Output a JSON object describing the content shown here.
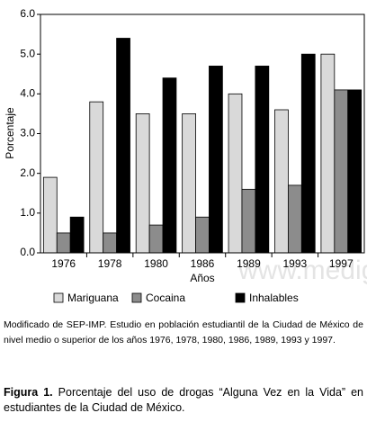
{
  "chart_data": {
    "type": "bar",
    "y_label": "Porcentaje",
    "x_label": "Años",
    "categories": [
      "1976",
      "1978",
      "1980",
      "1986",
      "1989",
      "1993",
      "1997"
    ],
    "series": [
      {
        "name": "Mariguana",
        "color": "#d9d9d9",
        "values": [
          1.9,
          3.8,
          3.5,
          3.5,
          4.0,
          3.6,
          5.0
        ]
      },
      {
        "name": "Cocaina",
        "color": "#8c8c8c",
        "values": [
          0.5,
          0.5,
          0.7,
          0.9,
          1.6,
          1.7,
          4.1
        ]
      },
      {
        "name": "Inhalables",
        "color": "#000000",
        "values": [
          0.9,
          5.4,
          4.4,
          4.7,
          4.7,
          5.0,
          4.1
        ]
      }
    ],
    "ylim": [
      0,
      6
    ],
    "yticks": [
      {
        "value": 0,
        "label": "0.0"
      },
      {
        "value": 1,
        "label": "1.0"
      },
      {
        "value": 2,
        "label": "2.0"
      },
      {
        "value": 3,
        "label": "3.0"
      },
      {
        "value": 4,
        "label": "4.0"
      },
      {
        "value": 5,
        "label": "5.0"
      },
      {
        "value": 6,
        "label": "6.0"
      }
    ],
    "legend": "bottom",
    "watermark": "www.medig",
    "source": "Modificado de SEP-IMP. Estudio en población estudiantil de la Ciudad de México de nivel medio o superior de los años 1976, 1978, 1980, 1986, 1989, 1993 y 1997.",
    "caption": {
      "label": "Figura 1.",
      "text": "Porcentaje del uso de drogas “Alguna Vez en la Vida” en estudiantes de la Ciudad de México."
    }
  }
}
